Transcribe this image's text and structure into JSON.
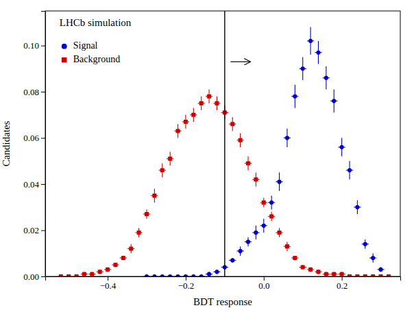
{
  "chart_data": {
    "type": "scatter",
    "xlabel": "BDT response",
    "ylabel": "Candidates",
    "annotations": [
      {
        "text": "LHCb simulation"
      }
    ],
    "vline": {
      "x": -0.1
    },
    "arrow": {
      "x_start": -0.085,
      "x_end": -0.035,
      "y": 0.093
    },
    "xlim": [
      -0.56,
      0.35
    ],
    "ylim": [
      0.0,
      0.115
    ],
    "xticks": [
      {
        "value": -0.4,
        "label": "−0.4"
      },
      {
        "value": -0.2,
        "label": "−0.2"
      },
      {
        "value": 0.0,
        "label": "0.0"
      },
      0.2
    ],
    "yticks": [
      {
        "value": 0.0,
        "label": "0.00"
      },
      0.02,
      0.04,
      0.06,
      0.08,
      {
        "value": 0.1,
        "label": "0.10"
      }
    ],
    "grid": false,
    "legend": "upper left",
    "series": [
      {
        "name": "Signal",
        "color": "#0000cc",
        "marker": "circle",
        "x": [
          -0.3,
          -0.28,
          -0.26,
          -0.24,
          -0.22,
          -0.2,
          -0.18,
          -0.16,
          -0.14,
          -0.12,
          -0.1,
          -0.08,
          -0.06,
          -0.04,
          -0.02,
          0.0,
          0.02,
          0.04,
          0.06,
          0.08,
          0.1,
          0.12,
          0.14,
          0.16,
          0.18,
          0.2,
          0.22,
          0.24,
          0.26,
          0.28,
          0.3
        ],
        "values": [
          0.0,
          0.0,
          0.0,
          0.0,
          0.0,
          0.0,
          0.0,
          0.0,
          0.001,
          0.002,
          0.004,
          0.007,
          0.011,
          0.015,
          0.019,
          0.022,
          0.032,
          0.041,
          0.06,
          0.078,
          0.09,
          0.102,
          0.097,
          0.086,
          0.076,
          0.056,
          0.046,
          0.03,
          0.014,
          0.008,
          0.003
        ],
        "yerr": [
          0.0,
          0.0,
          0.0,
          0.0,
          0.0,
          0.0,
          0.0,
          0.0,
          0.001,
          0.001,
          0.001,
          0.001,
          0.002,
          0.002,
          0.003,
          0.003,
          0.003,
          0.004,
          0.004,
          0.005,
          0.005,
          0.006,
          0.005,
          0.005,
          0.005,
          0.004,
          0.004,
          0.003,
          0.002,
          0.002,
          0.001
        ],
        "xerr": 0.009
      },
      {
        "name": "Background",
        "color": "#cc0000",
        "marker": "square",
        "x": [
          -0.52,
          -0.5,
          -0.48,
          -0.46,
          -0.44,
          -0.42,
          -0.4,
          -0.38,
          -0.36,
          -0.34,
          -0.32,
          -0.3,
          -0.28,
          -0.26,
          -0.24,
          -0.22,
          -0.2,
          -0.18,
          -0.16,
          -0.14,
          -0.12,
          -0.1,
          -0.08,
          -0.06,
          -0.04,
          -0.02,
          0.0,
          0.02,
          0.04,
          0.06,
          0.08,
          0.1,
          0.12,
          0.14,
          0.16,
          0.18,
          0.2,
          0.22,
          0.24,
          0.26,
          0.28,
          0.3,
          0.32
        ],
        "values": [
          0.0,
          0.0,
          0.0,
          0.001,
          0.001,
          0.002,
          0.003,
          0.005,
          0.008,
          0.012,
          0.019,
          0.027,
          0.035,
          0.046,
          0.051,
          0.063,
          0.067,
          0.07,
          0.075,
          0.078,
          0.075,
          0.071,
          0.066,
          0.059,
          0.049,
          0.042,
          0.032,
          0.026,
          0.019,
          0.013,
          0.008,
          0.004,
          0.003,
          0.002,
          0.001,
          0.001,
          0.001,
          0.0,
          0.0,
          0.0,
          0.0,
          0.0,
          0.0
        ],
        "yerr": [
          0.0,
          0.0,
          0.0,
          0.001,
          0.001,
          0.001,
          0.001,
          0.001,
          0.001,
          0.002,
          0.002,
          0.002,
          0.003,
          0.003,
          0.003,
          0.003,
          0.003,
          0.003,
          0.003,
          0.003,
          0.003,
          0.003,
          0.003,
          0.003,
          0.003,
          0.003,
          0.002,
          0.002,
          0.002,
          0.002,
          0.001,
          0.001,
          0.001,
          0.001,
          0.001,
          0.001,
          0.001,
          0.0,
          0.0,
          0.0,
          0.0,
          0.0,
          0.0
        ],
        "xerr": 0.009
      }
    ]
  }
}
